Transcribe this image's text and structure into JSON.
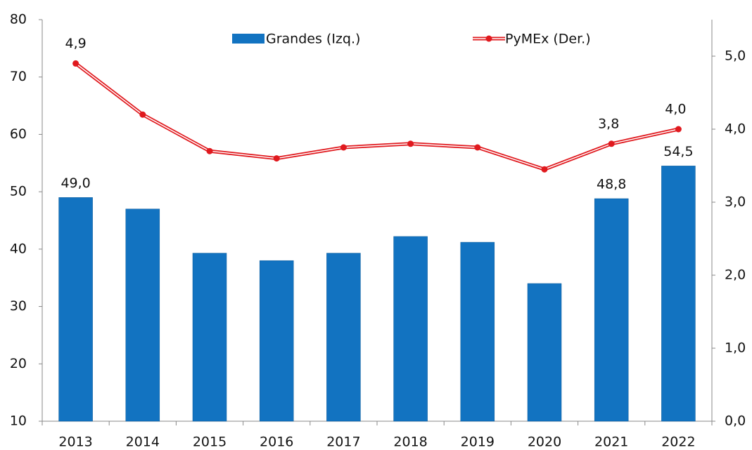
{
  "chart_data": {
    "type": "bar",
    "categories": [
      "2013",
      "2014",
      "2015",
      "2016",
      "2017",
      "2018",
      "2019",
      "2020",
      "2021",
      "2022"
    ],
    "series": [
      {
        "name": "Grandes (Izq.)",
        "type": "bar",
        "color": "#1273c1",
        "values": [
          49.0,
          47.0,
          39.3,
          38.0,
          39.3,
          42.2,
          41.2,
          34.0,
          48.8,
          54.5
        ],
        "value_labels": [
          "49,0",
          null,
          null,
          null,
          null,
          null,
          null,
          null,
          "48,8",
          "54,5"
        ]
      },
      {
        "name": "PyMEx (Der.)",
        "type": "line",
        "axis": "y2",
        "color": "#e0191e",
        "values": [
          4.9,
          4.2,
          3.7,
          3.6,
          3.75,
          3.8,
          3.75,
          3.45,
          3.8,
          4.0
        ],
        "value_labels": [
          "4,9",
          null,
          null,
          null,
          null,
          null,
          null,
          null,
          "3,8",
          "4,0"
        ]
      }
    ],
    "ylim": [
      10,
      80
    ],
    "yticks": [
      10,
      20,
      30,
      40,
      50,
      60,
      70,
      80
    ],
    "y2lim": [
      0,
      5.5
    ],
    "y2ticks": [
      {
        "value": 0,
        "label": "0,0"
      },
      {
        "value": 1,
        "label": "1,0"
      },
      {
        "value": 2,
        "label": "2,0"
      },
      {
        "value": 3,
        "label": "3,0"
      },
      {
        "value": 4,
        "label": "4,0"
      },
      {
        "value": 5,
        "label": "5,0"
      }
    ],
    "legend": "top"
  }
}
